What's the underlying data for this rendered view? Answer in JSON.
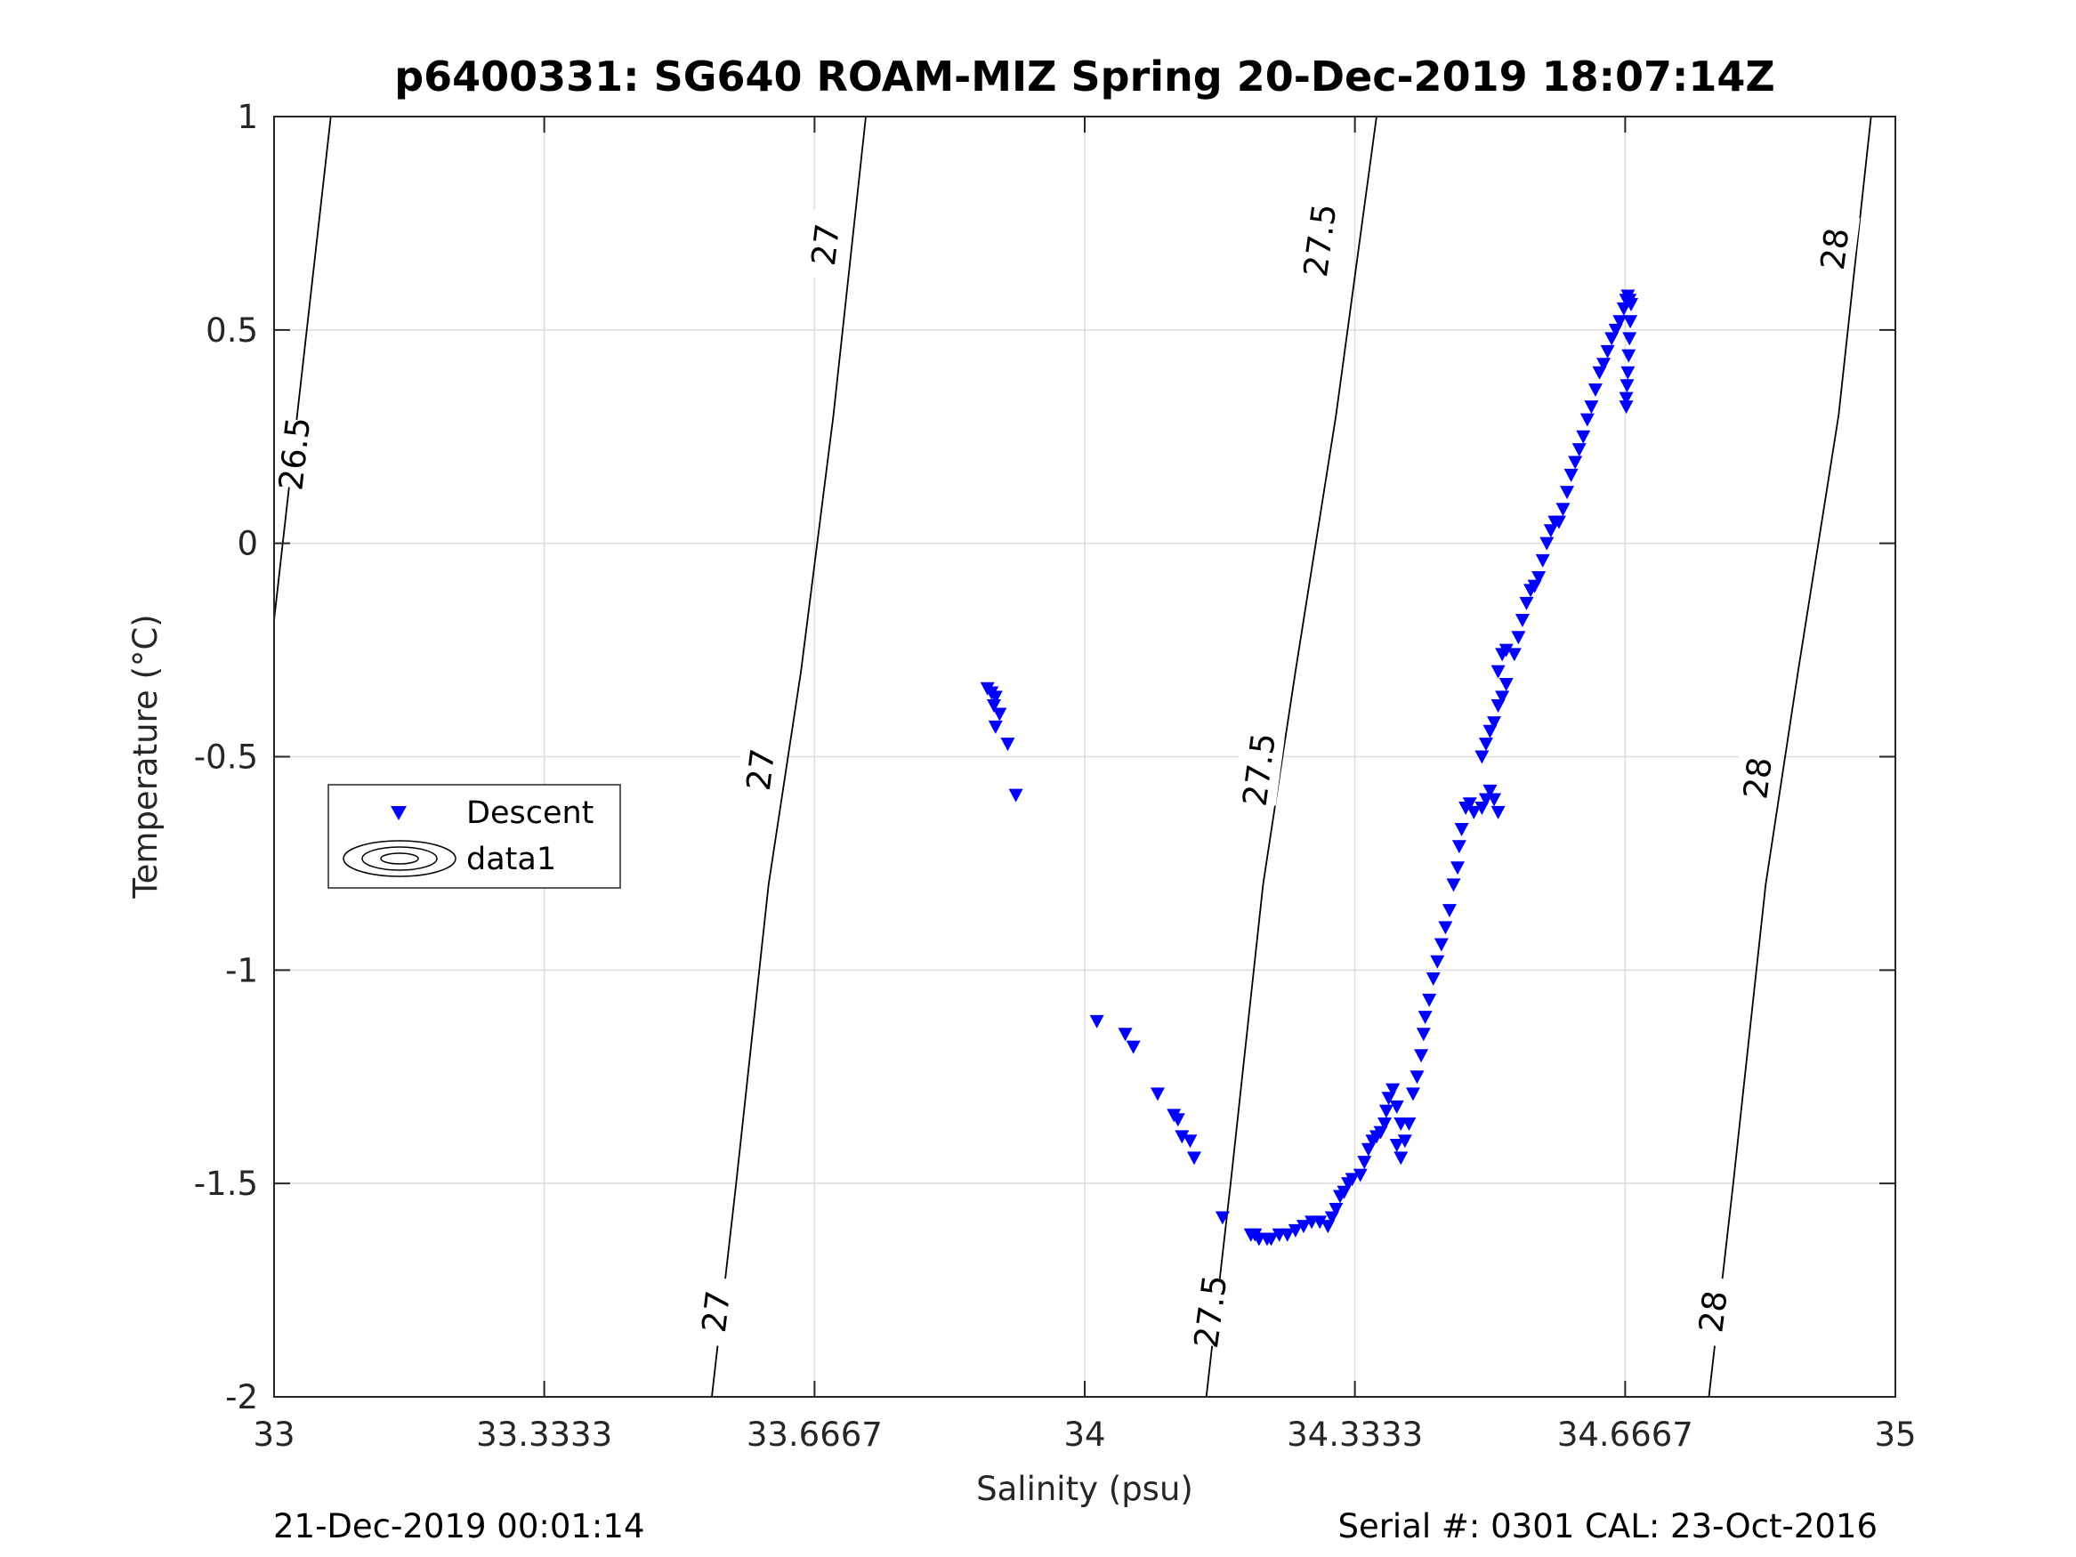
{
  "chart_data": {
    "type": "scatter",
    "title": "p6400331: SG640 ROAM-MIZ Spring 20-Dec-2019 18:07:14Z",
    "xlabel": "Salinity (psu)",
    "ylabel": "Temperature (°C)",
    "xlim": [
      33,
      35
    ],
    "ylim": [
      -2,
      1
    ],
    "x_ticks": [
      33,
      33.3333,
      33.6667,
      34,
      34.3333,
      34.6667,
      35
    ],
    "x_tick_labels": [
      "33",
      "33.3333",
      "33.6667",
      "34",
      "34.3333",
      "34.6667",
      "35"
    ],
    "y_ticks": [
      1,
      0.5,
      0,
      -0.5,
      -1,
      -1.5,
      -2
    ],
    "y_tick_labels": [
      "1",
      "0.5",
      "0",
      "-0.5",
      "-1",
      "-1.5",
      "-2"
    ],
    "grid": true,
    "legend": {
      "placement": "middle-left",
      "entries": [
        {
          "label": "Descent",
          "marker": "triangle-down",
          "color": "#0000ff"
        },
        {
          "label": "data1",
          "marker": "contour",
          "color": "#000000"
        }
      ]
    },
    "isopycnals": [
      {
        "label": "26.5",
        "points": [
          [
            33.0,
            -0.18
          ],
          [
            33.07,
            1.0
          ]
        ],
        "labels_at": [
          [
            33.025,
            0.21
          ]
        ]
      },
      {
        "label": "27",
        "points": [
          [
            33.54,
            -2.0
          ],
          [
            33.57,
            -1.5
          ],
          [
            33.61,
            -0.8
          ],
          [
            33.65,
            -0.3
          ],
          [
            33.69,
            0.3
          ],
          [
            33.73,
            1.0
          ]
        ],
        "labels_at": [
          [
            33.545,
            -1.8
          ],
          [
            33.6,
            -0.53
          ],
          [
            33.68,
            0.7
          ]
        ]
      },
      {
        "label": "27.5",
        "points": [
          [
            34.15,
            -2.0
          ],
          [
            34.18,
            -1.5
          ],
          [
            34.22,
            -0.8
          ],
          [
            34.26,
            -0.3
          ],
          [
            34.31,
            0.3
          ],
          [
            34.36,
            1.0
          ]
        ],
        "labels_at": [
          [
            34.155,
            -1.8
          ],
          [
            34.215,
            -0.53
          ],
          [
            34.29,
            0.71
          ]
        ]
      },
      {
        "label": "28",
        "points": [
          [
            34.77,
            -2.0
          ],
          [
            34.8,
            -1.5
          ],
          [
            34.84,
            -0.8
          ],
          [
            34.88,
            -0.3
          ],
          [
            34.93,
            0.3
          ],
          [
            34.97,
            1.0
          ]
        ],
        "labels_at": [
          [
            34.775,
            -1.8
          ],
          [
            34.83,
            -0.55
          ],
          [
            34.925,
            0.69
          ]
        ]
      }
    ],
    "series": [
      {
        "name": "Descent",
        "marker": "triangle-down",
        "color": "#0000ff",
        "points": [
          [
            33.88,
            -0.34
          ],
          [
            33.885,
            -0.35
          ],
          [
            33.89,
            -0.36
          ],
          [
            33.888,
            -0.38
          ],
          [
            33.895,
            -0.4
          ],
          [
            33.89,
            -0.43
          ],
          [
            33.905,
            -0.47
          ],
          [
            33.915,
            -0.59
          ],
          [
            34.015,
            -1.12
          ],
          [
            34.05,
            -1.15
          ],
          [
            34.06,
            -1.18
          ],
          [
            34.09,
            -1.29
          ],
          [
            34.11,
            -1.34
          ],
          [
            34.115,
            -1.35
          ],
          [
            34.12,
            -1.39
          ],
          [
            34.13,
            -1.4
          ],
          [
            34.135,
            -1.44
          ],
          [
            34.17,
            -1.58
          ],
          [
            34.205,
            -1.62
          ],
          [
            34.21,
            -1.62
          ],
          [
            34.215,
            -1.63
          ],
          [
            34.225,
            -1.63
          ],
          [
            34.23,
            -1.63
          ],
          [
            34.24,
            -1.62
          ],
          [
            34.25,
            -1.62
          ],
          [
            34.26,
            -1.61
          ],
          [
            34.27,
            -1.6
          ],
          [
            34.28,
            -1.59
          ],
          [
            34.29,
            -1.59
          ],
          [
            34.3,
            -1.6
          ],
          [
            34.305,
            -1.58
          ],
          [
            34.31,
            -1.56
          ],
          [
            34.315,
            -1.53
          ],
          [
            34.32,
            -1.52
          ],
          [
            34.325,
            -1.5
          ],
          [
            34.33,
            -1.49
          ],
          [
            34.34,
            -1.48
          ],
          [
            34.345,
            -1.45
          ],
          [
            34.35,
            -1.42
          ],
          [
            34.355,
            -1.4
          ],
          [
            34.36,
            -1.39
          ],
          [
            34.365,
            -1.38
          ],
          [
            34.37,
            -1.36
          ],
          [
            34.372,
            -1.33
          ],
          [
            34.375,
            -1.3
          ],
          [
            34.38,
            -1.28
          ],
          [
            34.385,
            -1.32
          ],
          [
            34.39,
            -1.36
          ],
          [
            34.385,
            -1.41
          ],
          [
            34.39,
            -1.44
          ],
          [
            34.395,
            -1.4
          ],
          [
            34.4,
            -1.36
          ],
          [
            34.405,
            -1.29
          ],
          [
            34.41,
            -1.25
          ],
          [
            34.415,
            -1.2
          ],
          [
            34.418,
            -1.15
          ],
          [
            34.42,
            -1.11
          ],
          [
            34.425,
            -1.07
          ],
          [
            34.43,
            -1.02
          ],
          [
            34.435,
            -0.98
          ],
          [
            34.44,
            -0.94
          ],
          [
            34.445,
            -0.9
          ],
          [
            34.45,
            -0.86
          ],
          [
            34.455,
            -0.8
          ],
          [
            34.46,
            -0.76
          ],
          [
            34.462,
            -0.71
          ],
          [
            34.465,
            -0.67
          ],
          [
            34.47,
            -0.62
          ],
          [
            34.475,
            -0.61
          ],
          [
            34.48,
            -0.63
          ],
          [
            34.49,
            -0.62
          ],
          [
            34.495,
            -0.6
          ],
          [
            34.5,
            -0.58
          ],
          [
            34.505,
            -0.6
          ],
          [
            34.51,
            -0.63
          ],
          [
            34.49,
            -0.5
          ],
          [
            34.495,
            -0.47
          ],
          [
            34.5,
            -0.44
          ],
          [
            34.505,
            -0.42
          ],
          [
            34.51,
            -0.38
          ],
          [
            34.515,
            -0.36
          ],
          [
            34.52,
            -0.33
          ],
          [
            34.51,
            -0.3
          ],
          [
            34.515,
            -0.26
          ],
          [
            34.52,
            -0.25
          ],
          [
            34.53,
            -0.26
          ],
          [
            34.535,
            -0.22
          ],
          [
            34.54,
            -0.18
          ],
          [
            34.545,
            -0.14
          ],
          [
            34.55,
            -0.11
          ],
          [
            34.555,
            -0.1
          ],
          [
            34.56,
            -0.08
          ],
          [
            34.565,
            -0.04
          ],
          [
            34.57,
            0.0
          ],
          [
            34.575,
            0.03
          ],
          [
            34.58,
            0.05
          ],
          [
            34.585,
            0.05
          ],
          [
            34.59,
            0.08
          ],
          [
            34.595,
            0.12
          ],
          [
            34.6,
            0.16
          ],
          [
            34.605,
            0.19
          ],
          [
            34.61,
            0.22
          ],
          [
            34.615,
            0.25
          ],
          [
            34.62,
            0.29
          ],
          [
            34.625,
            0.32
          ],
          [
            34.63,
            0.36
          ],
          [
            34.635,
            0.4
          ],
          [
            34.64,
            0.42
          ],
          [
            34.645,
            0.45
          ],
          [
            34.65,
            0.48
          ],
          [
            34.655,
            0.5
          ],
          [
            34.66,
            0.52
          ],
          [
            34.665,
            0.55
          ],
          [
            34.668,
            0.57
          ],
          [
            34.67,
            0.58
          ],
          [
            34.672,
            0.57
          ],
          [
            34.674,
            0.56
          ],
          [
            34.673,
            0.52
          ],
          [
            34.672,
            0.48
          ],
          [
            34.671,
            0.44
          ],
          [
            34.67,
            0.4
          ],
          [
            34.669,
            0.37
          ],
          [
            34.668,
            0.34
          ],
          [
            34.668,
            0.32
          ]
        ]
      }
    ]
  },
  "footer": {
    "timestamp": "21-Dec-2019 00:01:14",
    "serial": "Serial #: 0301  CAL: 23-Oct-2016"
  },
  "colors": {
    "marker": "#0000ff",
    "grid": "#dcdcdc",
    "axis": "#262626",
    "contour": "#000000"
  }
}
